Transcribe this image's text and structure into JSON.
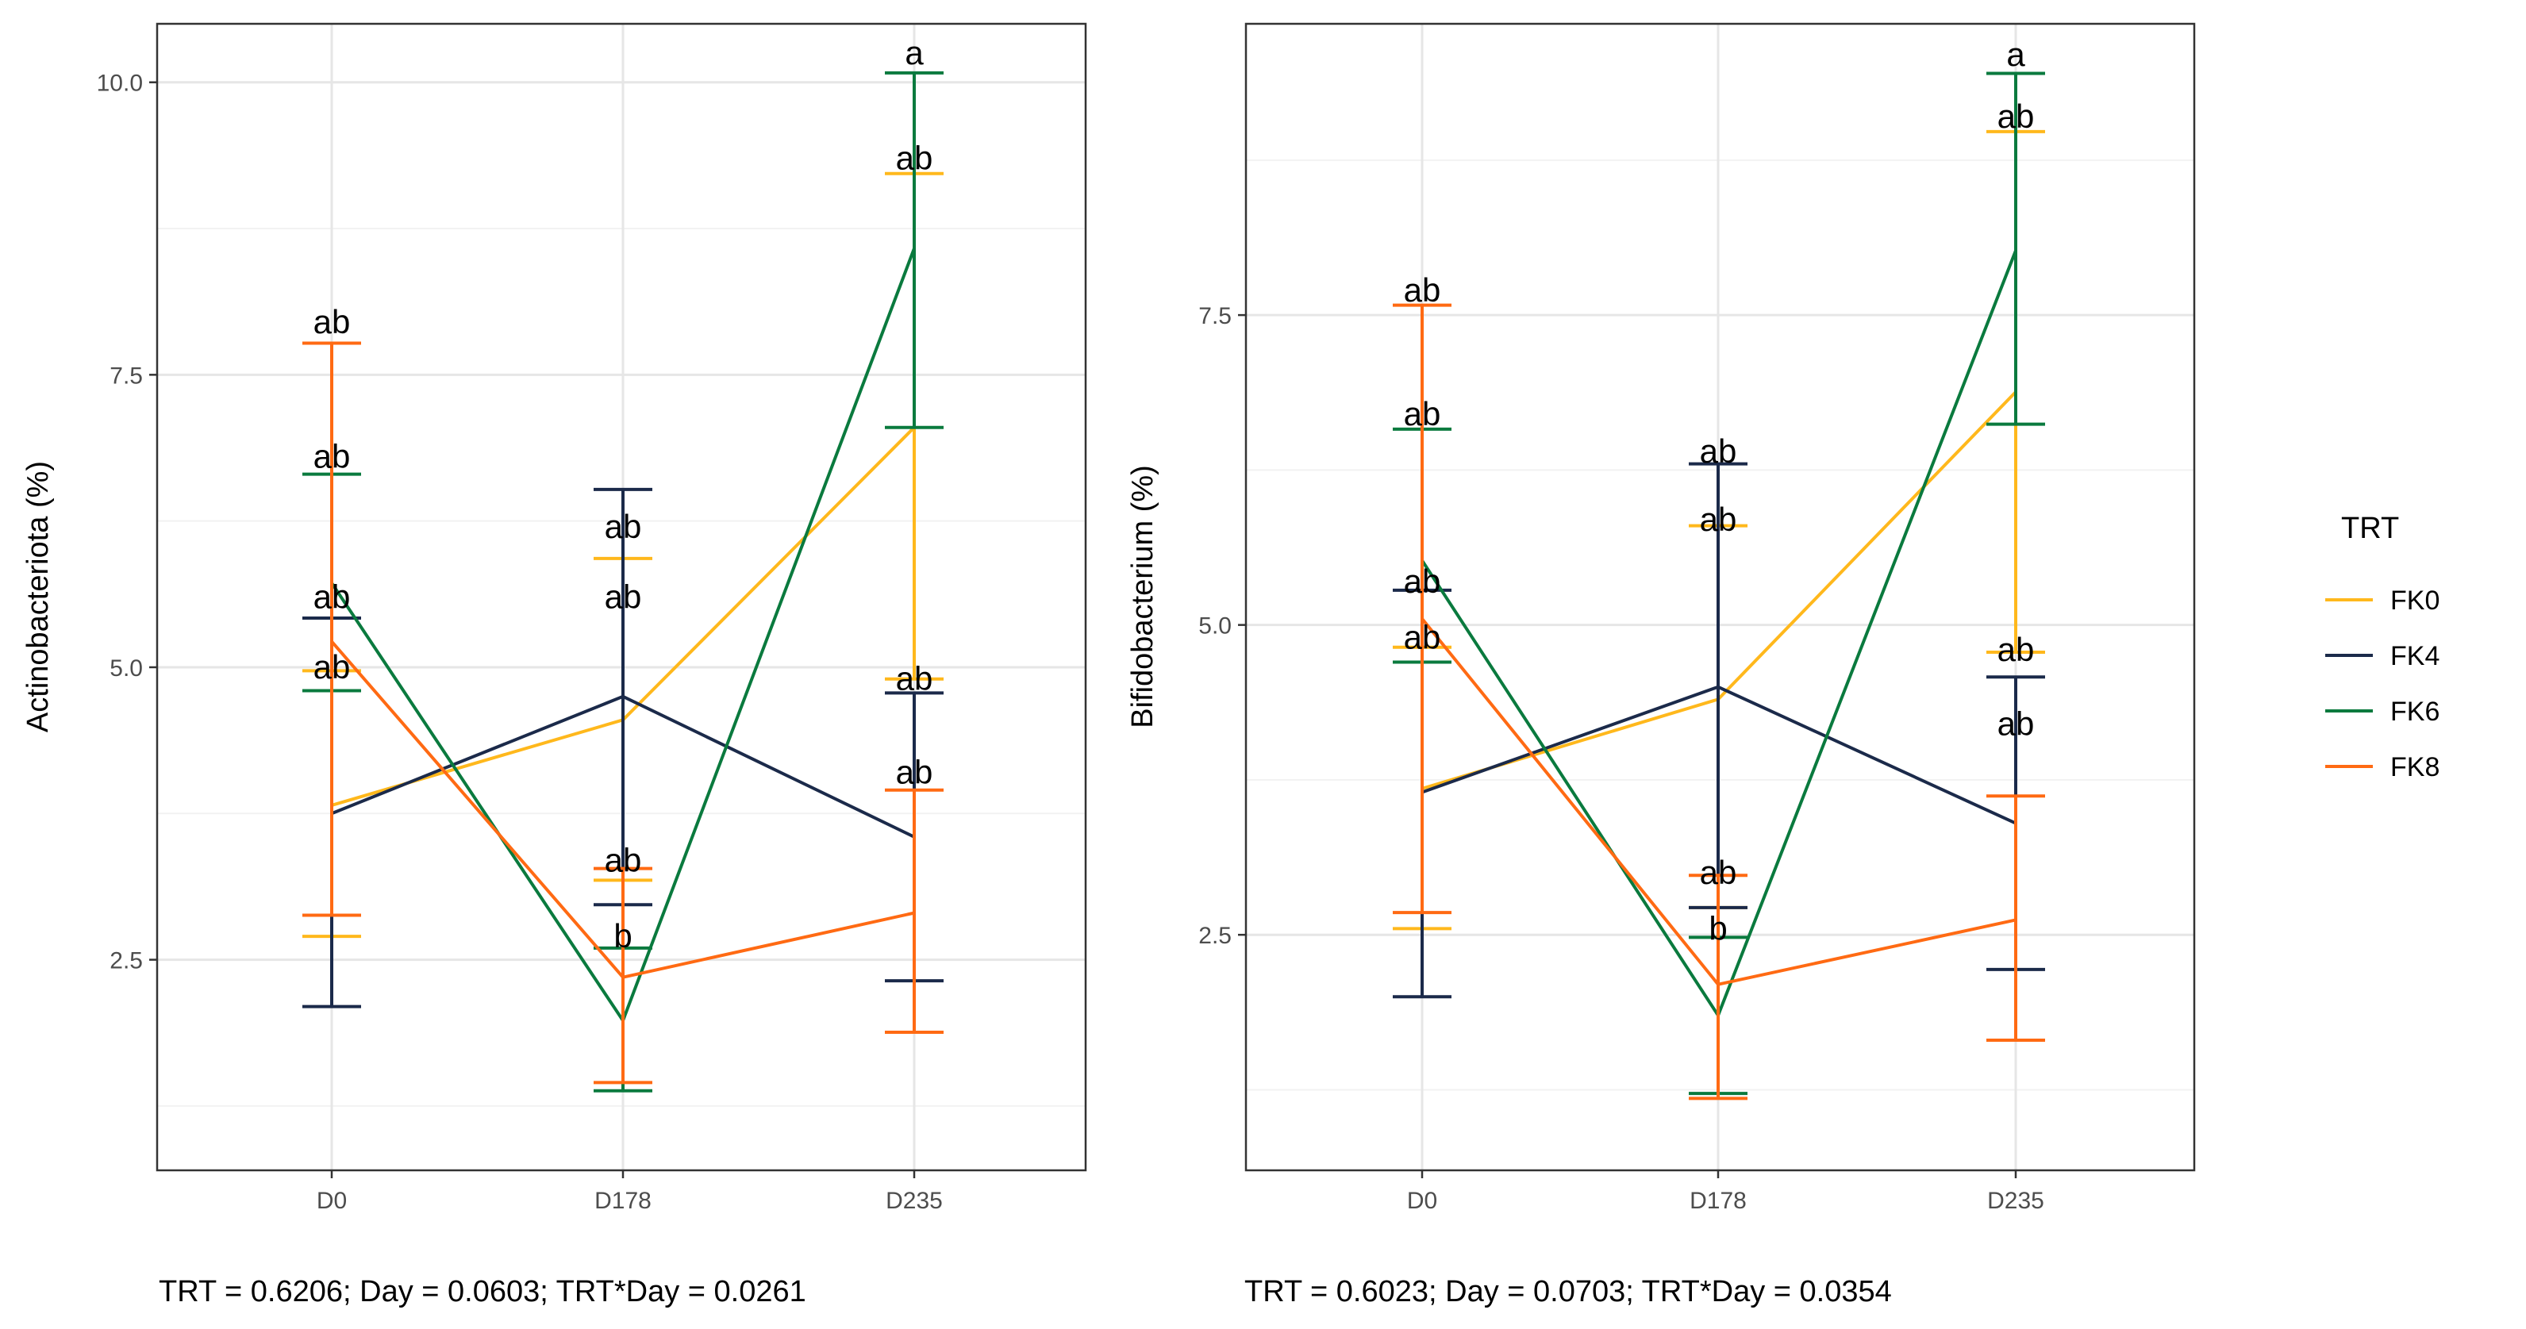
{
  "legend": {
    "title": "TRT",
    "items": [
      {
        "name": "FK0",
        "color": "#FFB81C"
      },
      {
        "name": "FK4",
        "color": "#1B2A4A"
      },
      {
        "name": "FK6",
        "color": "#0A7A3E"
      },
      {
        "name": "FK8",
        "color": "#FF6A13"
      }
    ]
  },
  "chart_data": [
    {
      "type": "line",
      "title": "",
      "xlabel": "",
      "ylabel": "Actinobacteriota (%)",
      "categories": [
        "D0",
        "D178",
        "D235"
      ],
      "ylim": [
        0.7,
        10.5
      ],
      "yticks": [
        2.5,
        5.0,
        7.5,
        10.0
      ],
      "yticklabels": [
        "2.5",
        "5.0",
        "7.5",
        "10.0"
      ],
      "grid": true,
      "footer": "TRT = 0.6206; Day = 0.0603; TRT*Day = 0.0261",
      "series": [
        {
          "name": "FK0",
          "color": "#FFB81C",
          "values": [
            3.82,
            4.55,
            7.05
          ],
          "upper": [
            4.97,
            5.93,
            9.22
          ],
          "lower": [
            2.7,
            3.18,
            4.9
          ],
          "letters": [
            {
              "text": "ab",
              "at": 0
            },
            {
              "text": "ab",
              "at": 1
            },
            {
              "text": "ab",
              "at": 2
            }
          ],
          "letter_values": [
            5.0,
            5.6,
            4.9
          ]
        },
        {
          "name": "FK4",
          "color": "#1B2A4A",
          "values": [
            3.75,
            4.75,
            3.55
          ],
          "upper": [
            5.42,
            6.52,
            4.78
          ],
          "lower": [
            2.1,
            2.97,
            2.32
          ],
          "letters": [
            {
              "text": "ab",
              "at": 0
            },
            {
              "text": "ab",
              "at": 1
            },
            {
              "text": "ab",
              "at": 2
            }
          ],
          "letter_values": [
            5.6,
            6.2,
            4.1
          ]
        },
        {
          "name": "FK6",
          "color": "#0A7A3E",
          "values": [
            5.72,
            1.98,
            8.58
          ],
          "upper": [
            6.65,
            2.6,
            10.08
          ],
          "lower": [
            4.8,
            1.38,
            7.05
          ],
          "letters": [
            {
              "text": "ab",
              "at": 0
            },
            {
              "text": "b",
              "at": 1
            },
            {
              "text": "a",
              "at": 2
            }
          ],
          "letter_values": [
            6.8,
            2.7,
            10.25
          ]
        },
        {
          "name": "FK8",
          "color": "#FF6A13",
          "values": [
            5.22,
            2.35,
            2.9
          ],
          "upper": [
            7.77,
            3.28,
            3.95
          ],
          "lower": [
            2.88,
            1.45,
            1.88
          ],
          "letters": [
            {
              "text": "ab",
              "at": 0
            },
            {
              "text": "ab",
              "at": 1
            },
            {
              "text": "ab",
              "at": 2
            }
          ],
          "letter_values": [
            7.95,
            3.35,
            9.35
          ]
        }
      ]
    },
    {
      "type": "line",
      "title": "",
      "xlabel": "",
      "ylabel": "Bifidobacterium (%)",
      "categories": [
        "D0",
        "D178",
        "D235"
      ],
      "ylim": [
        0.6,
        9.85
      ],
      "yticks": [
        2.5,
        5.0,
        7.5
      ],
      "yticklabels": [
        "2.5",
        "5.0",
        "7.5"
      ],
      "grid": true,
      "footer": "TRT = 0.6023; Day = 0.0703; TRT*Day = 0.0354",
      "series": [
        {
          "name": "FK0",
          "color": "#FFB81C",
          "values": [
            3.68,
            4.4,
            6.88
          ],
          "upper": [
            4.82,
            5.8,
            8.98
          ],
          "lower": [
            2.55,
            2.72,
            4.78
          ],
          "letters": [
            {
              "text": "ab",
              "at": 0
            },
            {
              "text": "ab",
              "at": 1
            },
            {
              "text": "ab",
              "at": 2
            }
          ],
          "letter_values": [
            4.9,
            5.85,
            4.8
          ]
        },
        {
          "name": "FK4",
          "color": "#1B2A4A",
          "values": [
            3.65,
            4.5,
            3.4
          ],
          "upper": [
            5.28,
            6.3,
            4.58
          ],
          "lower": [
            2.0,
            2.72,
            2.22
          ],
          "letters": [
            {
              "text": "ab",
              "at": 0
            },
            {
              "text": "b",
              "at": 1
            },
            {
              "text": "ab",
              "at": 2
            }
          ],
          "letter_values": [
            5.35,
            2.55,
            4.2
          ]
        },
        {
          "name": "FK6",
          "color": "#0A7A3E",
          "values": [
            5.52,
            1.85,
            8.02
          ],
          "upper": [
            6.58,
            2.48,
            9.45
          ],
          "lower": [
            4.7,
            1.22,
            6.62
          ],
          "letters": [
            {
              "text": "ab",
              "at": 0
            },
            {
              "text": "ab",
              "at": 1
            },
            {
              "text": "a",
              "at": 2
            }
          ],
          "letter_values": [
            6.7,
            3.0,
            9.6
          ]
        },
        {
          "name": "FK8",
          "color": "#FF6A13",
          "values": [
            5.05,
            2.1,
            2.62
          ],
          "upper": [
            7.58,
            2.98,
            3.62
          ],
          "lower": [
            2.68,
            1.18,
            1.65
          ],
          "letters": [
            {
              "text": "ab",
              "at": 0
            },
            {
              "text": "ab",
              "at": 1
            },
            {
              "text": "ab",
              "at": 2
            }
          ],
          "letter_values": [
            7.7,
            6.4,
            9.1
          ]
        }
      ]
    }
  ]
}
